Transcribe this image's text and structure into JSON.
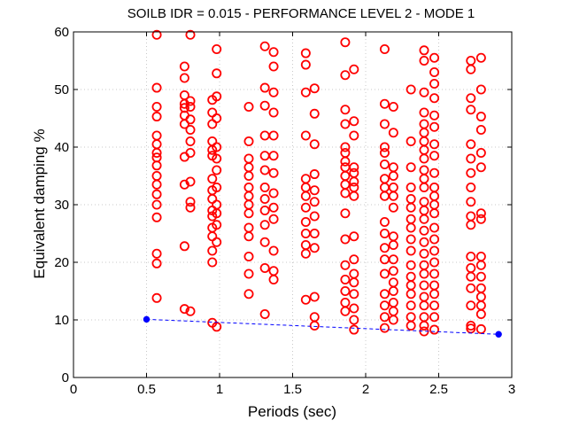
{
  "chart_data": {
    "type": "scatter",
    "title": "SOILB IDR = 0.015 - PERFORMANCE LEVEL 2 - MODE 1",
    "xlabel": "Periods (sec)",
    "ylabel": "Equivalent damping %",
    "xlim": [
      0,
      3
    ],
    "ylim": [
      0,
      60
    ],
    "xticks": [
      "0",
      "0.5",
      "1",
      "1.5",
      "2",
      "2.5",
      "3"
    ],
    "yticks": [
      "0",
      "10",
      "20",
      "30",
      "40",
      "50",
      "60"
    ],
    "grid": true,
    "legend": "none",
    "colors": {
      "scatter": "#ff0000",
      "line": "#0000ff"
    },
    "series": [
      {
        "style": "red-circles",
        "columns": [
          {
            "x": 0.57,
            "y": [
              59.5,
              50.3,
              47.0,
              45.3,
              42.0,
              40.5,
              39.0,
              38.2,
              36.8,
              35.0,
              33.5,
              31.8,
              30.0,
              27.8,
              21.5,
              19.8,
              13.8
            ]
          },
          {
            "x": 0.76,
            "y": [
              54.0,
              52.0,
              49.0,
              47.5,
              46.8,
              45.5,
              44.0,
              38.3,
              33.5,
              22.8,
              11.9
            ]
          },
          {
            "x": 0.8,
            "y": [
              59.5,
              48.0,
              47.0,
              44.8,
              43.0,
              41.0,
              39.0,
              34.0,
              30.5,
              29.5,
              11.5
            ]
          },
          {
            "x": 0.95,
            "y": [
              48.2,
              46.0,
              44.0,
              41.0,
              39.5,
              38.5,
              34.5,
              32.5,
              31.0,
              29.0,
              28.0,
              26.0,
              24.5,
              22.0,
              20.0,
              9.5
            ]
          },
          {
            "x": 0.98,
            "y": [
              57.0,
              52.8,
              48.8,
              45.0,
              40.0,
              38.0,
              36.0,
              33.0,
              30.0,
              28.5,
              26.5,
              23.5,
              8.8
            ]
          },
          {
            "x": 1.2,
            "y": [
              47.0,
              41.0,
              38.0,
              36.5,
              35.0,
              33.0,
              31.5,
              30.0,
              28.5,
              26.0,
              24.5,
              21.0,
              18.0,
              14.5
            ]
          },
          {
            "x": 1.31,
            "y": [
              57.5,
              50.3,
              47.2,
              42.0,
              38.5,
              36.0,
              33.0,
              31.0,
              29.0,
              26.5,
              23.5,
              19.0,
              11.0
            ]
          },
          {
            "x": 1.37,
            "y": [
              56.5,
              54.0,
              49.5,
              46.0,
              42.0,
              38.5,
              35.5,
              32.0,
              29.5,
              27.5,
              22.0,
              18.5,
              17.0
            ]
          },
          {
            "x": 1.59,
            "y": [
              56.3,
              54.3,
              49.5,
              42.0,
              34.5,
              33.0,
              31.5,
              29.5,
              27.0,
              25.0,
              23.0,
              21.5,
              13.5
            ]
          },
          {
            "x": 1.65,
            "y": [
              50.2,
              45.8,
              40.5,
              35.3,
              32.5,
              30.5,
              28.0,
              25.0,
              22.5,
              14.0,
              10.5,
              9.0
            ]
          },
          {
            "x": 1.86,
            "y": [
              58.2,
              52.5,
              46.5,
              44.0,
              40.0,
              39.0,
              37.5,
              36.5,
              35.0,
              33.5,
              32.0,
              28.5,
              24.0,
              19.5,
              17.0,
              15.0,
              13.0,
              11.5
            ]
          },
          {
            "x": 1.92,
            "y": [
              53.5,
              44.5,
              42.0,
              36.5,
              35.5,
              34.0,
              33.0,
              31.5,
              24.5,
              20.5,
              18.0,
              16.5,
              14.5,
              12.0,
              10.0,
              8.3
            ]
          },
          {
            "x": 2.13,
            "y": [
              57.0,
              47.5,
              44.0,
              40.0,
              39.0,
              37.0,
              34.5,
              33.0,
              31.5,
              27.0,
              25.0,
              22.5,
              20.5,
              18.0,
              14.5,
              12.5,
              10.5,
              8.6
            ]
          },
          {
            "x": 2.19,
            "y": [
              47.0,
              42.5,
              36.5,
              35.0,
              33.0,
              31.5,
              29.5,
              24.5,
              23.0,
              20.5,
              18.5,
              16.5,
              15.0,
              13.0,
              11.5,
              10.0
            ]
          },
          {
            "x": 2.31,
            "y": [
              50.0,
              41.0,
              36.5,
              33.0,
              31.0,
              29.5,
              27.5,
              26.0,
              24.0,
              22.0,
              19.5,
              17.5,
              16.0,
              14.5,
              12.5,
              10.5,
              9.0
            ]
          },
          {
            "x": 2.4,
            "y": [
              56.8,
              55.0,
              49.5,
              46.0,
              44.0,
              42.5,
              41.0,
              39.5,
              38.0,
              36.0,
              34.5,
              33.0,
              30.5,
              29.0,
              27.5,
              25.5,
              23.5,
              21.5,
              19.5,
              18.0,
              16.0,
              14.0,
              12.5,
              10.5,
              9.0,
              8.0
            ]
          },
          {
            "x": 2.47,
            "y": [
              55.5,
              53.0,
              51.0,
              48.5,
              45.5,
              43.5,
              40.5,
              38.5,
              35.5,
              33.0,
              31.5,
              30.0,
              28.5,
              26.0,
              24.0,
              22.0,
              20.0,
              18.0,
              16.0,
              14.5,
              12.5,
              10.5,
              8.3
            ]
          },
          {
            "x": 2.72,
            "y": [
              55.0,
              53.5,
              48.5,
              46.5,
              40.5,
              38.0,
              35.5,
              33.0,
              30.5,
              28.0,
              26.5,
              21.0,
              19.0,
              17.5,
              15.5,
              12.5,
              9.0,
              8.5
            ]
          },
          {
            "x": 2.79,
            "y": [
              55.5,
              50.0,
              45.3,
              43.0,
              39.0,
              36.5,
              28.5,
              27.5,
              21.0,
              19.5,
              17.5,
              15.5,
              14.0,
              12.5,
              11.0,
              8.4
            ]
          }
        ]
      },
      {
        "style": "blue-dashed-line",
        "x": [
          0.5,
          2.91
        ],
        "y": [
          10.1,
          7.5
        ]
      }
    ]
  }
}
